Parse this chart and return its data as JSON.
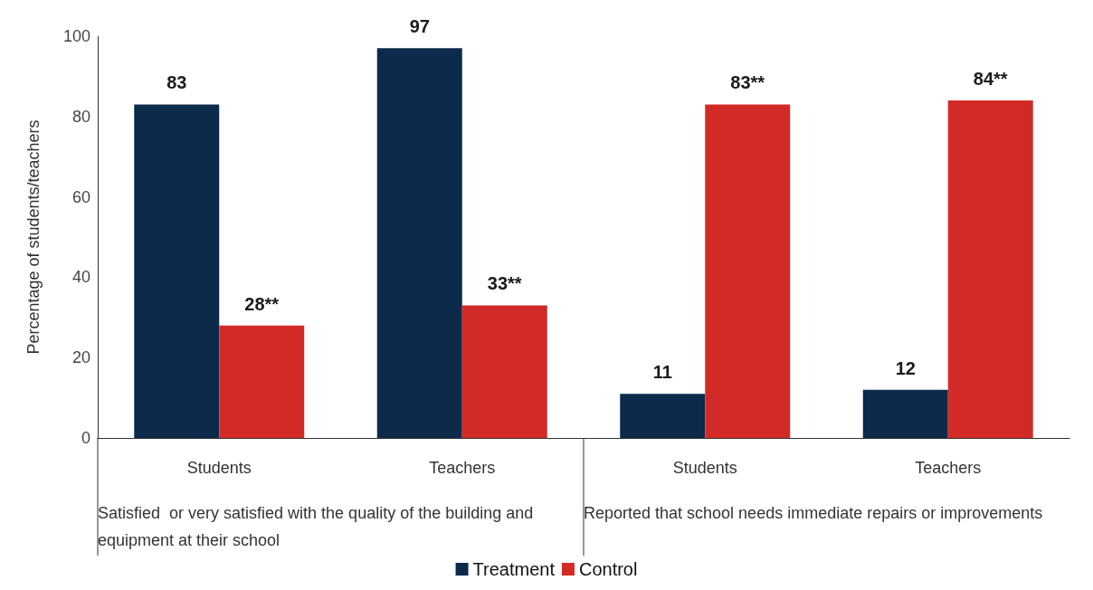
{
  "chart_data": {
    "type": "bar",
    "ylabel": "Percentage of students/teachers",
    "categories": [
      "Students",
      "Teachers",
      "Students",
      "Teachers"
    ],
    "series": [
      {
        "name": "Treatment",
        "color": "#0c2a4a",
        "values": [
          83,
          97,
          11,
          12
        ],
        "value_labels": [
          "83",
          "97",
          "11",
          "12"
        ]
      },
      {
        "name": "Control",
        "color": "#d22b27",
        "values": [
          28,
          33,
          83,
          84
        ],
        "value_labels": [
          "28**",
          "33**",
          "83**",
          "84**"
        ]
      }
    ],
    "annotations": [
      "Satisfied  or very satisfied with the quality of the building and equipment at their school",
      "Reported that school needs immediate repairs or improvements"
    ],
    "ylim": [
      0,
      100
    ],
    "yticks": [
      0,
      20,
      40,
      60,
      80,
      100
    ],
    "grid": false,
    "legend": "bottom"
  }
}
